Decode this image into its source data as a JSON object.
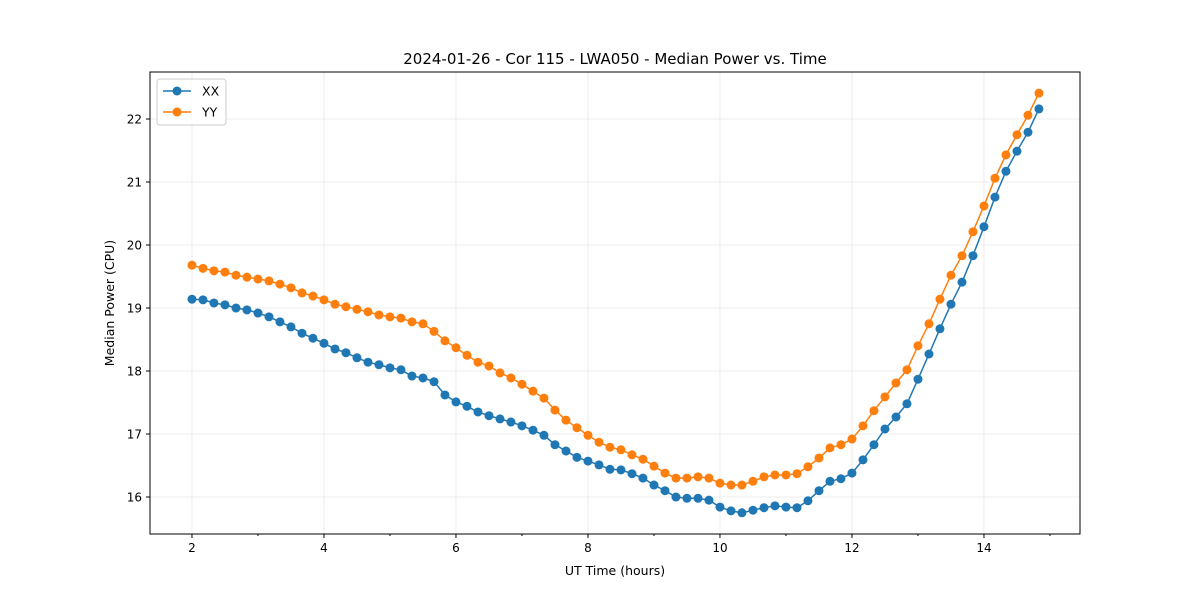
{
  "chart_data": {
    "type": "line",
    "title": "2024-01-26 - Cor 115 - LWA050 - Median Power vs. Time",
    "xlabel": "UT Time (hours)",
    "ylabel": "Median Power (CPU)",
    "xlim": [
      1.364,
      15.455
    ],
    "ylim": [
      15.413,
      22.746
    ],
    "xticks": [
      2,
      4,
      6,
      8,
      10,
      12,
      14
    ],
    "xtick_labels": [
      "2",
      "4",
      "6",
      "8",
      "10",
      "12",
      "14"
    ],
    "yticks": [
      16,
      17,
      18,
      19,
      20,
      21,
      22
    ],
    "ytick_labels": [
      "16",
      "17",
      "18",
      "19",
      "20",
      "21",
      "22"
    ],
    "grid": true,
    "legend_position": "top-left",
    "x": [
      2,
      2.167,
      2.333,
      2.5,
      2.667,
      2.833,
      3,
      3.167,
      3.333,
      3.5,
      3.667,
      3.833,
      4,
      4.167,
      4.333,
      4.5,
      4.667,
      4.833,
      5,
      5.167,
      5.333,
      5.5,
      5.667,
      5.833,
      6,
      6.167,
      6.333,
      6.5,
      6.667,
      6.833,
      7,
      7.167,
      7.333,
      7.5,
      7.667,
      7.833,
      8,
      8.167,
      8.333,
      8.5,
      8.667,
      8.833,
      9,
      9.167,
      9.333,
      9.5,
      9.667,
      9.833,
      10,
      10.167,
      10.333,
      10.5,
      10.667,
      10.833,
      11,
      11.167,
      11.333,
      11.5,
      11.667,
      11.833,
      12,
      12.167,
      12.333,
      12.5,
      12.667,
      12.833,
      13,
      13.167,
      13.333,
      13.5,
      13.667,
      13.833,
      14,
      14.167,
      14.333,
      14.5,
      14.667,
      14.833
    ],
    "series": [
      {
        "name": "XX",
        "color": "#1f77b4",
        "values": [
          19.14,
          19.13,
          19.08,
          19.05,
          19.0,
          18.97,
          18.92,
          18.86,
          18.78,
          18.7,
          18.6,
          18.52,
          18.44,
          18.35,
          18.29,
          18.21,
          18.14,
          18.1,
          18.05,
          18.02,
          17.92,
          17.89,
          17.83,
          17.62,
          17.51,
          17.44,
          17.35,
          17.29,
          17.24,
          17.19,
          17.13,
          17.06,
          16.98,
          16.83,
          16.73,
          16.63,
          16.57,
          16.51,
          16.44,
          16.43,
          16.37,
          16.3,
          16.19,
          16.1,
          16.0,
          15.98,
          15.98,
          15.95,
          15.84,
          15.78,
          15.75,
          15.79,
          15.83,
          15.86,
          15.84,
          15.83,
          15.94,
          16.1,
          16.25,
          16.29,
          16.38,
          16.59,
          16.83,
          17.08,
          17.27,
          17.48,
          17.87,
          18.27,
          18.67,
          19.06,
          19.41,
          19.83,
          20.29,
          20.76,
          21.17,
          21.49,
          21.79,
          22.16
        ]
      },
      {
        "name": "YY",
        "color": "#ff7f0e",
        "values": [
          19.68,
          19.63,
          19.59,
          19.57,
          19.52,
          19.49,
          19.46,
          19.43,
          19.38,
          19.32,
          19.24,
          19.19,
          19.13,
          19.06,
          19.02,
          18.98,
          18.94,
          18.89,
          18.86,
          18.84,
          18.78,
          18.75,
          18.63,
          18.48,
          18.37,
          18.25,
          18.14,
          18.08,
          17.97,
          17.89,
          17.79,
          17.68,
          17.57,
          17.38,
          17.22,
          17.1,
          16.98,
          16.87,
          16.79,
          16.75,
          16.67,
          16.6,
          16.49,
          16.38,
          16.3,
          16.3,
          16.32,
          16.3,
          16.22,
          16.19,
          16.19,
          16.25,
          16.32,
          16.35,
          16.35,
          16.37,
          16.48,
          16.62,
          16.78,
          16.83,
          16.92,
          17.13,
          17.37,
          17.59,
          17.81,
          18.02,
          18.4,
          18.75,
          19.14,
          19.52,
          19.83,
          20.21,
          20.62,
          21.06,
          21.43,
          21.75,
          22.06,
          22.41
        ]
      }
    ]
  }
}
